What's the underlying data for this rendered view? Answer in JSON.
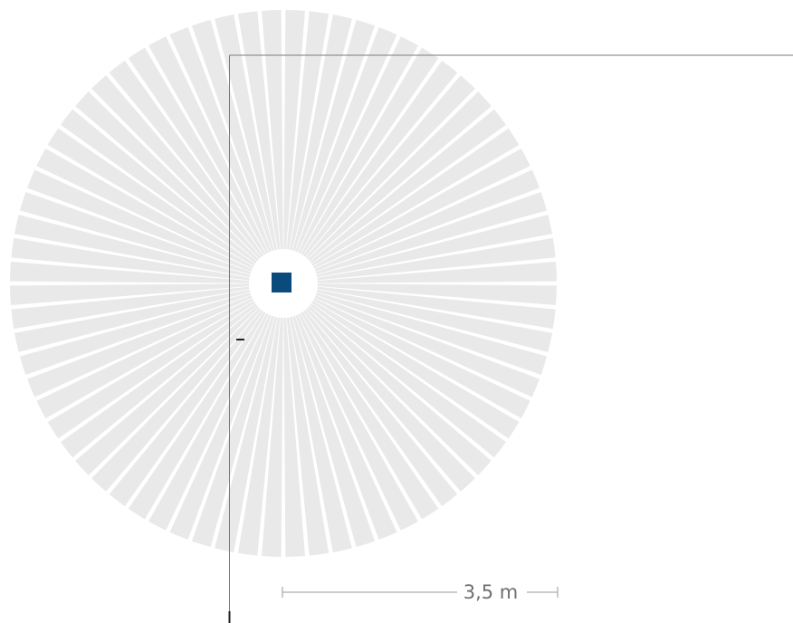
{
  "diagram": {
    "scale_bar": {
      "label": "3,5 m"
    },
    "colors": {
      "background": "#ffffff",
      "coverage_sector": "#e9e9e9",
      "sensor": "#0b4a7c",
      "scale_bar": "#9a9a9a",
      "frame_line": "#7a7a7a",
      "tick_mark": "#222222"
    },
    "icons": {
      "sensor": "square-sensor-icon"
    }
  }
}
